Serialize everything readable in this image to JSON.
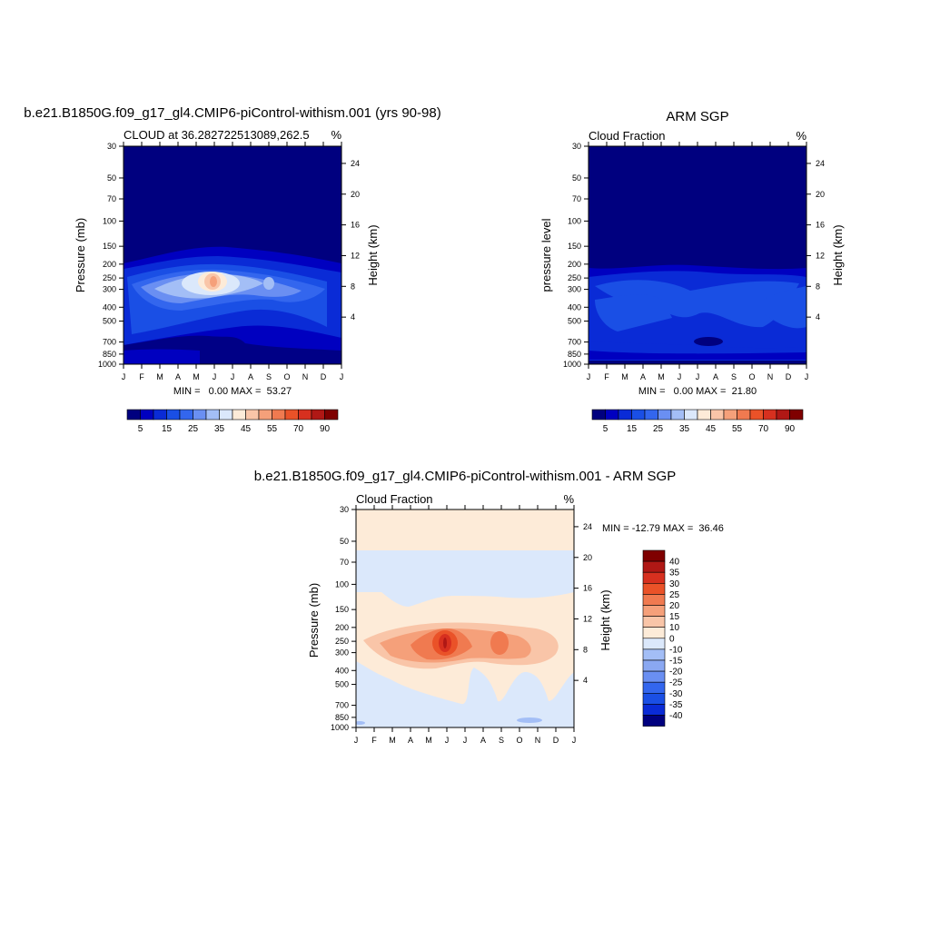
{
  "chart_data": [
    {
      "type": "heatmap",
      "title": "b.e21.B1850G.f09_g17_gl4.CMIP6-piControl-withism.001 (yrs 90-98)",
      "subtitle_left": "CLOUD at 36.282722513089,262.5",
      "units": "%",
      "ylabel": "Pressure (mb)",
      "ylabel_right": "Height (km)",
      "x_ticks": [
        "J",
        "F",
        "M",
        "A",
        "M",
        "J",
        "J",
        "A",
        "S",
        "O",
        "N",
        "D",
        "J"
      ],
      "y_ticks": [
        "30",
        "50",
        "70",
        "100",
        "150",
        "200",
        "250",
        "300",
        "400",
        "500",
        "700",
        "850",
        "1000"
      ],
      "y_ticks_right": [
        "24",
        "20",
        "16",
        "12",
        "8",
        "4"
      ],
      "stats": "MIN =   0.00 MAX =  53.27",
      "min": 0.0,
      "max": 53.27,
      "colorbar_labels": [
        "5",
        "15",
        "25",
        "35",
        "45",
        "55",
        "70",
        "90"
      ],
      "colorbar_colors": [
        "#00007f",
        "#0000c0",
        "#0a2bd6",
        "#1a4fe5",
        "#3366ee",
        "#6a8ff2",
        "#a3bef6",
        "#dbe8fb",
        "#fdebd8",
        "#f9c5a8",
        "#f5a07a",
        "#f07a50",
        "#ea5228",
        "#d7301f",
        "#b01815",
        "#7f0000"
      ],
      "profile_levels": [
        {
          "p": 30,
          "v": 1
        },
        {
          "p": 50,
          "v": 1
        },
        {
          "p": 70,
          "v": 1
        },
        {
          "p": 100,
          "v": 1
        },
        {
          "p": 150,
          "v": 3
        },
        {
          "p": 200,
          "v": 14
        },
        {
          "p": 250,
          "v": 24
        },
        {
          "p": 300,
          "v": 22
        },
        {
          "p": 400,
          "v": 12
        },
        {
          "p": 500,
          "v": 8
        },
        {
          "p": 700,
          "v": 5
        },
        {
          "p": 850,
          "v": 4
        },
        {
          "p": 1000,
          "v": 2
        }
      ]
    },
    {
      "type": "heatmap",
      "title": "ARM SGP",
      "subtitle_left": "Cloud Fraction",
      "units": "%",
      "ylabel": "pressure level",
      "ylabel_right": "Height (km)",
      "x_ticks": [
        "J",
        "F",
        "M",
        "A",
        "M",
        "J",
        "J",
        "A",
        "S",
        "O",
        "N",
        "D",
        "J"
      ],
      "y_ticks": [
        "30",
        "50",
        "70",
        "100",
        "150",
        "200",
        "250",
        "300",
        "400",
        "500",
        "700",
        "850",
        "1000"
      ],
      "y_ticks_right": [
        "24",
        "20",
        "16",
        "12",
        "8",
        "4"
      ],
      "stats": "MIN =   0.00 MAX =  21.80",
      "min": 0.0,
      "max": 21.8,
      "colorbar_labels": [
        "5",
        "15",
        "25",
        "35",
        "45",
        "55",
        "70",
        "90"
      ],
      "colorbar_colors": [
        "#00007f",
        "#0000c0",
        "#0a2bd6",
        "#1a4fe5",
        "#3366ee",
        "#6a8ff2",
        "#a3bef6",
        "#dbe8fb",
        "#fdebd8",
        "#f9c5a8",
        "#f5a07a",
        "#f07a50",
        "#ea5228",
        "#d7301f",
        "#b01815",
        "#7f0000"
      ]
    },
    {
      "type": "heatmap",
      "title": "b.e21.B1850G.f09_g17_gl4.CMIP6-piControl-withism.001 - ARM SGP",
      "subtitle_left": "Cloud Fraction",
      "units": "%",
      "ylabel": "Pressure (mb)",
      "ylabel_right": "Height (km)",
      "x_ticks": [
        "J",
        "F",
        "M",
        "A",
        "M",
        "J",
        "J",
        "A",
        "S",
        "O",
        "N",
        "D",
        "J"
      ],
      "y_ticks": [
        "30",
        "50",
        "70",
        "100",
        "150",
        "200",
        "250",
        "300",
        "400",
        "500",
        "700",
        "850",
        "1000"
      ],
      "y_ticks_right": [
        "24",
        "20",
        "16",
        "12",
        "8",
        "4"
      ],
      "stats": "MIN = -12.79 MAX =  36.46",
      "min": -12.79,
      "max": 36.46,
      "colorbar_labels": [
        "40",
        "35",
        "30",
        "25",
        "20",
        "15",
        "10",
        "0",
        "-10",
        "-15",
        "-20",
        "-25",
        "-30",
        "-35",
        "-40"
      ],
      "colorbar_colors": [
        "#7f0000",
        "#b01815",
        "#d7301f",
        "#ea5228",
        "#f07a50",
        "#f5a07a",
        "#f9c5a8",
        "#fdebd8",
        "#dbe8fb",
        "#a3bef6",
        "#8aa8f2",
        "#6a8ff2",
        "#3366ee",
        "#1a4fe5",
        "#0a2bd6",
        "#00007f"
      ]
    }
  ]
}
